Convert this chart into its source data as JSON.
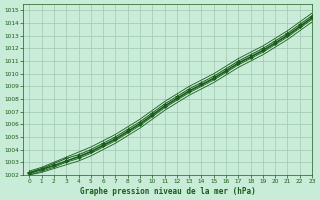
{
  "bg_color": "#c8ecd8",
  "plot_bg_color": "#c8ecd8",
  "grid_color": "#a0c8b0",
  "line_color": "#1a5c1a",
  "xlabel": "Graphe pression niveau de la mer (hPa)",
  "xlim": [
    -0.5,
    23
  ],
  "ylim": [
    1002,
    1015.5
  ],
  "yticks": [
    1002,
    1003,
    1004,
    1005,
    1006,
    1007,
    1008,
    1009,
    1010,
    1011,
    1012,
    1013,
    1014,
    1015
  ],
  "xticks": [
    0,
    1,
    2,
    3,
    4,
    5,
    6,
    7,
    8,
    9,
    10,
    11,
    12,
    13,
    14,
    15,
    16,
    17,
    18,
    19,
    20,
    21,
    22,
    23
  ],
  "series": [
    [
      1002.1,
      1002.4,
      1002.7,
      1003.1,
      1003.4,
      1003.8,
      1004.3,
      1004.8,
      1005.4,
      1006.0,
      1006.7,
      1007.4,
      1008.0,
      1008.6,
      1009.1,
      1009.6,
      1010.2,
      1010.8,
      1011.3,
      1011.8,
      1012.4,
      1013.0,
      1013.7,
      1014.4
    ],
    [
      1002.0,
      1002.3,
      1002.6,
      1003.0,
      1003.3,
      1003.7,
      1004.2,
      1004.7,
      1005.3,
      1005.9,
      1006.6,
      1007.3,
      1007.9,
      1008.5,
      1009.0,
      1009.5,
      1010.1,
      1010.7,
      1011.2,
      1011.7,
      1012.3,
      1012.9,
      1013.6,
      1014.3
    ],
    [
      1002.2,
      1002.5,
      1002.9,
      1003.3,
      1003.6,
      1004.0,
      1004.5,
      1005.0,
      1005.6,
      1006.2,
      1006.9,
      1007.6,
      1008.2,
      1008.8,
      1009.3,
      1009.8,
      1010.4,
      1011.0,
      1011.5,
      1012.0,
      1012.6,
      1013.2,
      1013.9,
      1014.6
    ],
    [
      1002.0,
      1002.2,
      1002.5,
      1002.8,
      1003.1,
      1003.5,
      1004.0,
      1004.5,
      1005.1,
      1005.7,
      1006.4,
      1007.1,
      1007.7,
      1008.3,
      1008.8,
      1009.3,
      1009.9,
      1010.5,
      1011.0,
      1011.5,
      1012.1,
      1012.7,
      1013.4,
      1014.1
    ],
    [
      1002.3,
      1002.6,
      1003.0,
      1003.4,
      1003.8,
      1004.2,
      1004.7,
      1005.2,
      1005.8,
      1006.4,
      1007.1,
      1007.8,
      1008.4,
      1009.0,
      1009.5,
      1010.0,
      1010.6,
      1011.2,
      1011.7,
      1012.2,
      1012.8,
      1013.4,
      1014.1,
      1014.8
    ]
  ],
  "marker_series": 2
}
